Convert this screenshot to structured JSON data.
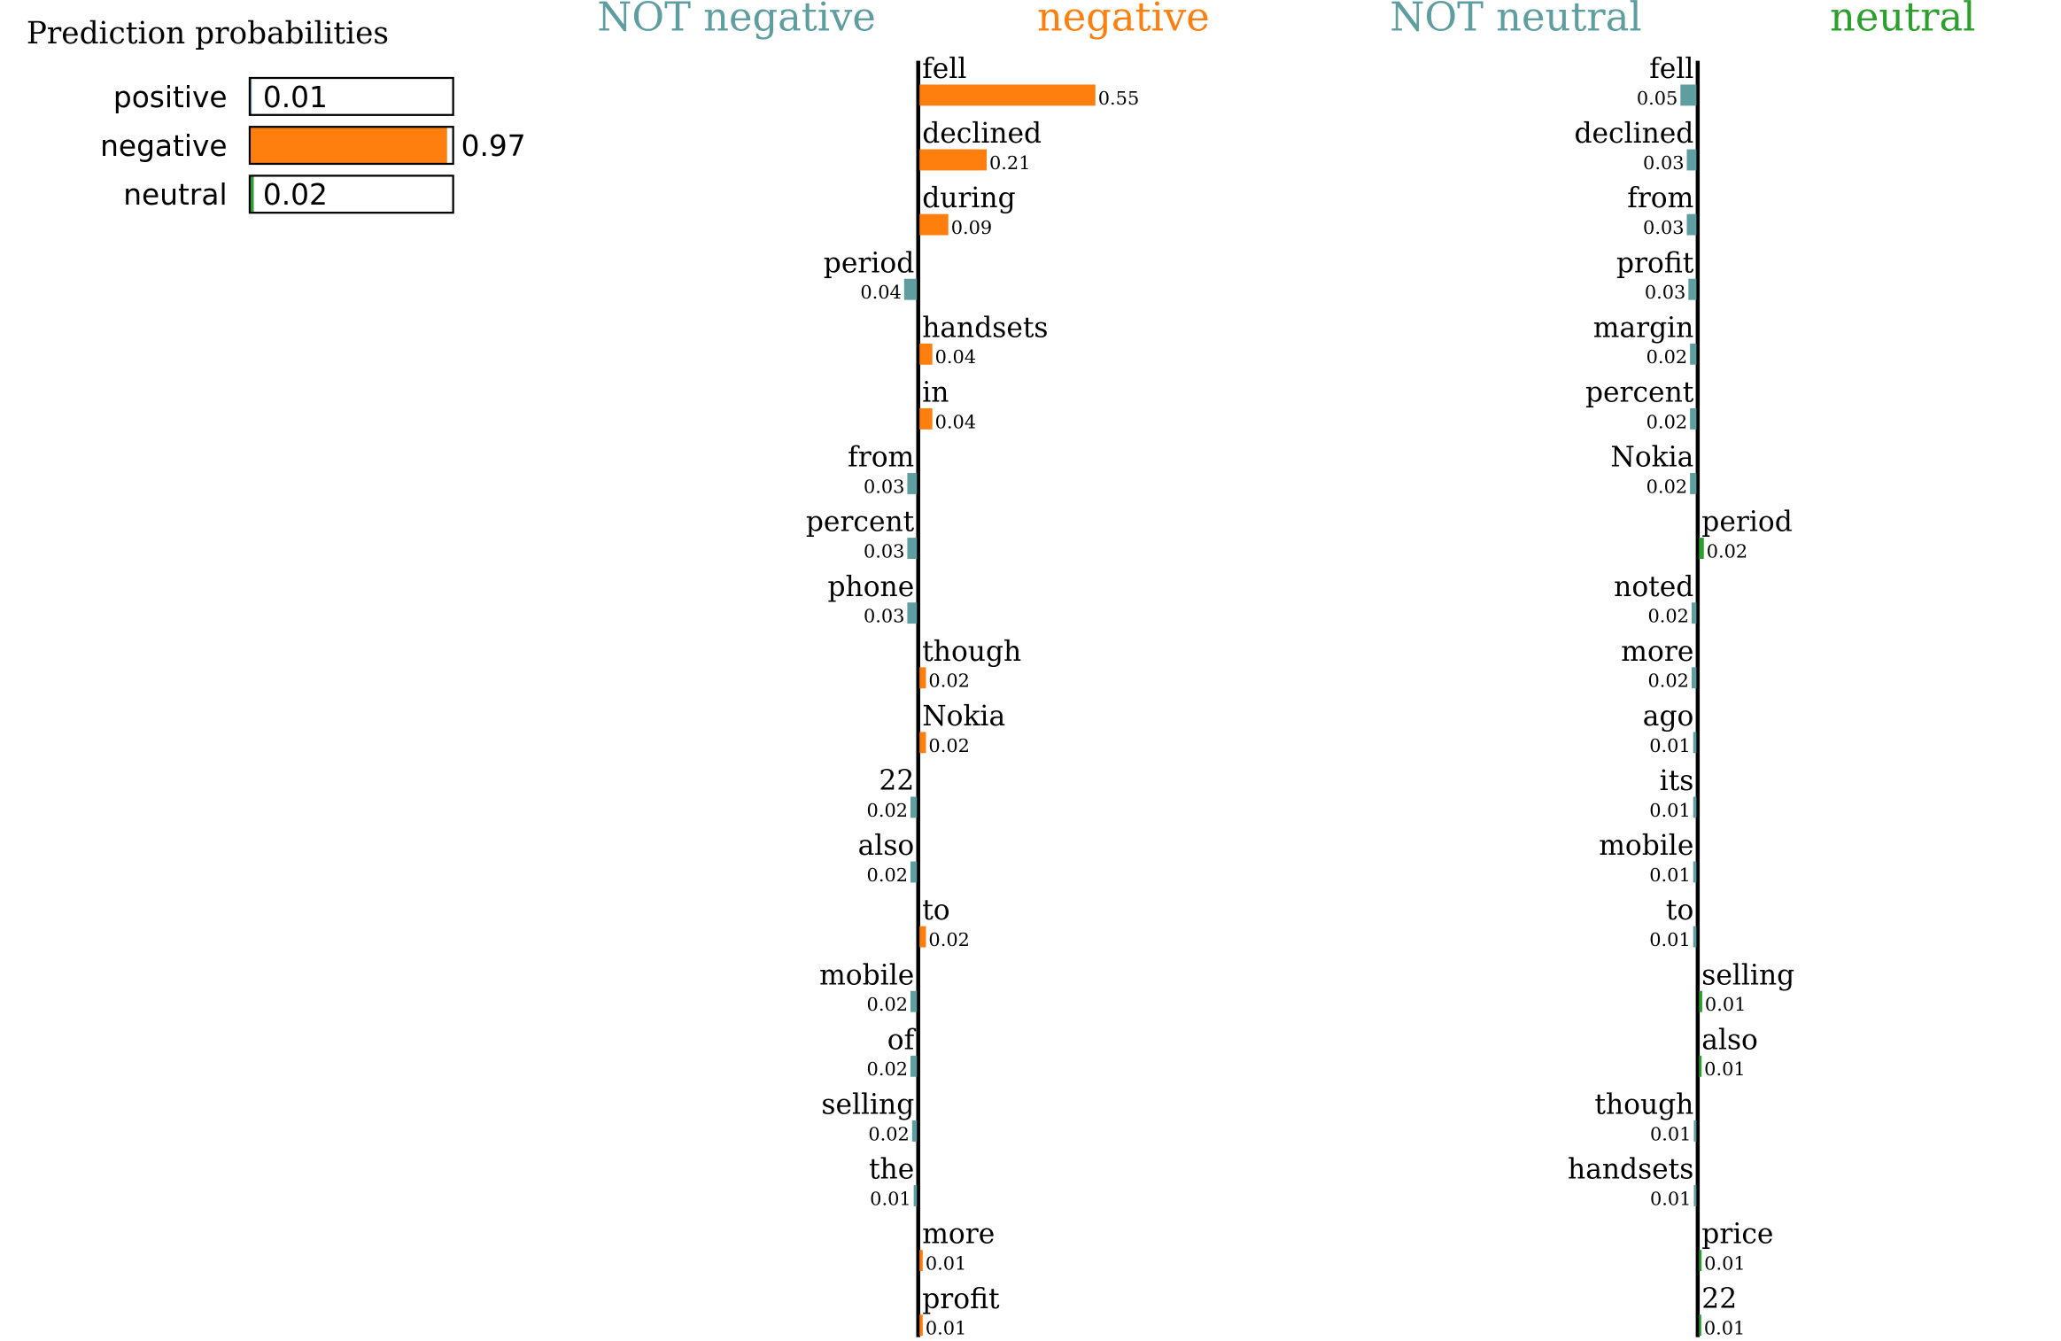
{
  "colors": {
    "negative": "#ff7f0e",
    "neutral": "#2ca02c",
    "not_class": "#5f9ea0",
    "axis": "#000000"
  },
  "chart_data": [
    {
      "type": "bar",
      "title": "Prediction probabilities",
      "categories": [
        "positive",
        "negative",
        "neutral"
      ],
      "values": [
        0.01,
        0.97,
        0.02
      ],
      "value_labels": [
        "0.01",
        "0.97",
        "0.02"
      ],
      "xlim": [
        0,
        1
      ],
      "grid": false
    },
    {
      "type": "bar",
      "orientation": "horizontal-diverging",
      "left_label": "NOT negative",
      "right_label": "negative",
      "items": [
        {
          "word": "fell",
          "value": 0.55,
          "label": "0.55"
        },
        {
          "word": "declined",
          "value": 0.21,
          "label": "0.21"
        },
        {
          "word": "during",
          "value": 0.09,
          "label": "0.09"
        },
        {
          "word": "period",
          "value": -0.04,
          "label": "0.04"
        },
        {
          "word": "handsets",
          "value": 0.04,
          "label": "0.04"
        },
        {
          "word": "in",
          "value": 0.04,
          "label": "0.04"
        },
        {
          "word": "from",
          "value": -0.03,
          "label": "0.03"
        },
        {
          "word": "percent",
          "value": -0.03,
          "label": "0.03"
        },
        {
          "word": "phone",
          "value": -0.03,
          "label": "0.03"
        },
        {
          "word": "though",
          "value": 0.02,
          "label": "0.02"
        },
        {
          "word": "Nokia",
          "value": 0.02,
          "label": "0.02"
        },
        {
          "word": "22",
          "value": -0.02,
          "label": "0.02"
        },
        {
          "word": "also",
          "value": -0.02,
          "label": "0.02"
        },
        {
          "word": "to",
          "value": 0.02,
          "label": "0.02"
        },
        {
          "word": "mobile",
          "value": -0.02,
          "label": "0.02"
        },
        {
          "word": "of",
          "value": -0.02,
          "label": "0.02"
        },
        {
          "word": "selling",
          "value": -0.015,
          "label": "0.02"
        },
        {
          "word": "the",
          "value": -0.01,
          "label": "0.01"
        },
        {
          "word": "more",
          "value": 0.01,
          "label": "0.01"
        },
        {
          "word": "profit",
          "value": 0.01,
          "label": "0.01"
        }
      ]
    },
    {
      "type": "bar",
      "orientation": "horizontal-diverging",
      "left_label": "NOT neutral",
      "right_label": "neutral",
      "items": [
        {
          "word": "fell",
          "value": -0.05,
          "label": "0.05"
        },
        {
          "word": "declined",
          "value": -0.03,
          "label": "0.03"
        },
        {
          "word": "from",
          "value": -0.03,
          "label": "0.03"
        },
        {
          "word": "profit",
          "value": -0.025,
          "label": "0.03"
        },
        {
          "word": "margin",
          "value": -0.02,
          "label": "0.02"
        },
        {
          "word": "percent",
          "value": -0.02,
          "label": "0.02"
        },
        {
          "word": "Nokia",
          "value": -0.02,
          "label": "0.02"
        },
        {
          "word": "period",
          "value": 0.015,
          "label": "0.02"
        },
        {
          "word": "noted",
          "value": -0.015,
          "label": "0.02"
        },
        {
          "word": "more",
          "value": -0.015,
          "label": "0.02"
        },
        {
          "word": "ago",
          "value": -0.01,
          "label": "0.01"
        },
        {
          "word": "its",
          "value": -0.01,
          "label": "0.01"
        },
        {
          "word": "mobile",
          "value": -0.01,
          "label": "0.01"
        },
        {
          "word": "to",
          "value": -0.01,
          "label": "0.01"
        },
        {
          "word": "selling",
          "value": 0.01,
          "label": "0.01"
        },
        {
          "word": "also",
          "value": 0.008,
          "label": "0.01"
        },
        {
          "word": "though",
          "value": -0.008,
          "label": "0.01"
        },
        {
          "word": "handsets",
          "value": -0.008,
          "label": "0.01"
        },
        {
          "word": "price",
          "value": 0.008,
          "label": "0.01"
        },
        {
          "word": "22",
          "value": 0.007,
          "label": "0.01"
        }
      ]
    }
  ]
}
